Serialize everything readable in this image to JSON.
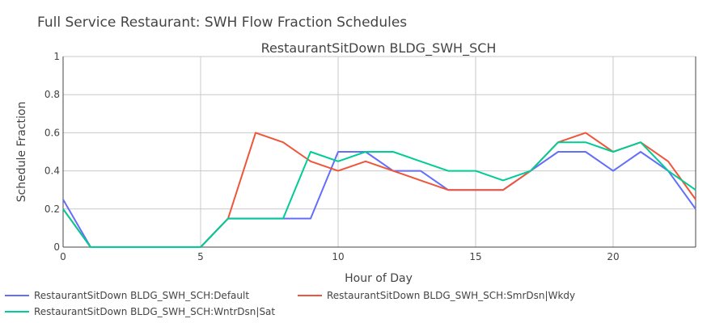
{
  "figure_title": "Full Service Restaurant: SWH Flow Fraction Schedules",
  "chart_data": {
    "type": "line",
    "title": "RestaurantSitDown BLDG_SWH_SCH",
    "xlabel": "Hour of Day",
    "ylabel": "Schedule Fraction",
    "xlim": [
      0,
      23
    ],
    "ylim": [
      0,
      1
    ],
    "xticks": [
      0,
      5,
      10,
      15,
      20
    ],
    "yticks": [
      0,
      0.2,
      0.4,
      0.6,
      0.8,
      1
    ],
    "xtick_labels": [
      "0",
      "5",
      "10",
      "15",
      "20"
    ],
    "ytick_labels": [
      "0",
      "0.2",
      "0.4",
      "0.6",
      "0.8",
      "1"
    ],
    "grid": true,
    "legend_position": "bottom-left",
    "x": [
      0,
      1,
      2,
      3,
      4,
      5,
      6,
      7,
      8,
      9,
      10,
      11,
      12,
      13,
      14,
      15,
      16,
      17,
      18,
      19,
      20,
      21,
      22,
      23
    ],
    "series": [
      {
        "name": "RestaurantSitDown BLDG_SWH_SCH:Default",
        "color": "#636efa",
        "values": [
          0.25,
          0,
          0,
          0,
          0,
          0,
          0.15,
          0.15,
          0.15,
          0.15,
          0.5,
          0.5,
          0.4,
          0.4,
          0.3,
          0.3,
          0.3,
          0.4,
          0.5,
          0.5,
          0.4,
          0.5,
          0.4,
          0.2
        ]
      },
      {
        "name": "RestaurantSitDown BLDG_SWH_SCH:SmrDsn|Wkdy",
        "color": "#ef553b",
        "values": [
          0.2,
          0,
          0,
          0,
          0,
          0,
          0.15,
          0.6,
          0.55,
          0.45,
          0.4,
          0.45,
          0.4,
          0.35,
          0.3,
          0.3,
          0.3,
          0.4,
          0.55,
          0.6,
          0.5,
          0.55,
          0.45,
          0.25
        ]
      },
      {
        "name": "RestaurantSitDown BLDG_SWH_SCH:WntrDsn|Sat",
        "color": "#00cc96",
        "values": [
          0.2,
          0,
          0,
          0,
          0,
          0,
          0.15,
          0.15,
          0.15,
          0.5,
          0.45,
          0.5,
          0.5,
          0.45,
          0.4,
          0.4,
          0.35,
          0.4,
          0.55,
          0.55,
          0.5,
          0.55,
          0.4,
          0.3
        ]
      }
    ]
  }
}
